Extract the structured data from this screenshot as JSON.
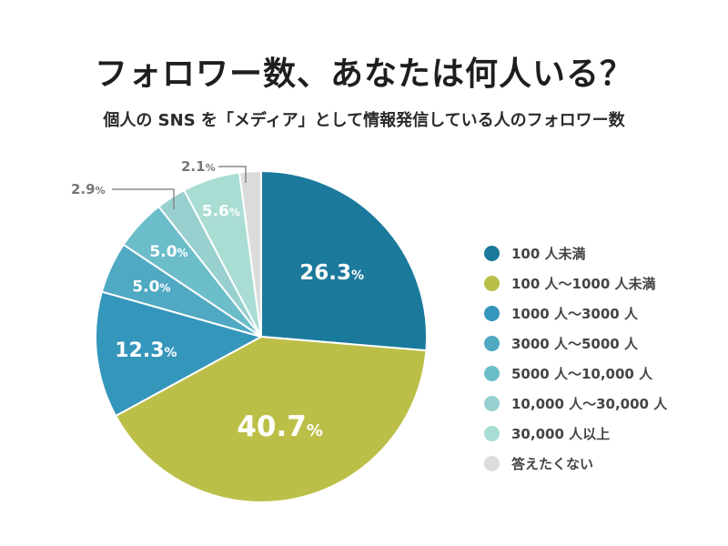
{
  "title": "フォロワー数、あなたは何人いる？",
  "subtitle": "個人の SNS を「メディア」として情報発信している人のフォロワー数",
  "chart_data": {
    "type": "pie",
    "unit": "%",
    "slices": [
      {
        "label": "100 人未満",
        "value": 26.3,
        "value_label": "26.3",
        "color": "#1b7a9c"
      },
      {
        "label": "100 人～1000 人未満",
        "value": 40.7,
        "value_label": "40.7",
        "color": "#bcbf47"
      },
      {
        "label": "1000 人～3000 人",
        "value": 12.3,
        "value_label": "12.3",
        "color": "#3496ba"
      },
      {
        "label": "3000 人～5000 人",
        "value": 5.0,
        "value_label": "5.0",
        "color": "#4fa9c3"
      },
      {
        "label": "5000 人～10,000 人",
        "value": 5.0,
        "value_label": "5.0",
        "color": "#6cbdca"
      },
      {
        "label": "10,000 人～30,000 人",
        "value": 2.9,
        "value_label": "2.9",
        "color": "#98cfcf"
      },
      {
        "label": "30,000 人以上",
        "value": 5.6,
        "value_label": "5.6",
        "color": "#a9ddd3"
      },
      {
        "label": "答えたくない",
        "value": 2.1,
        "value_label": "2.1",
        "color": "#dcdcdc"
      }
    ]
  }
}
